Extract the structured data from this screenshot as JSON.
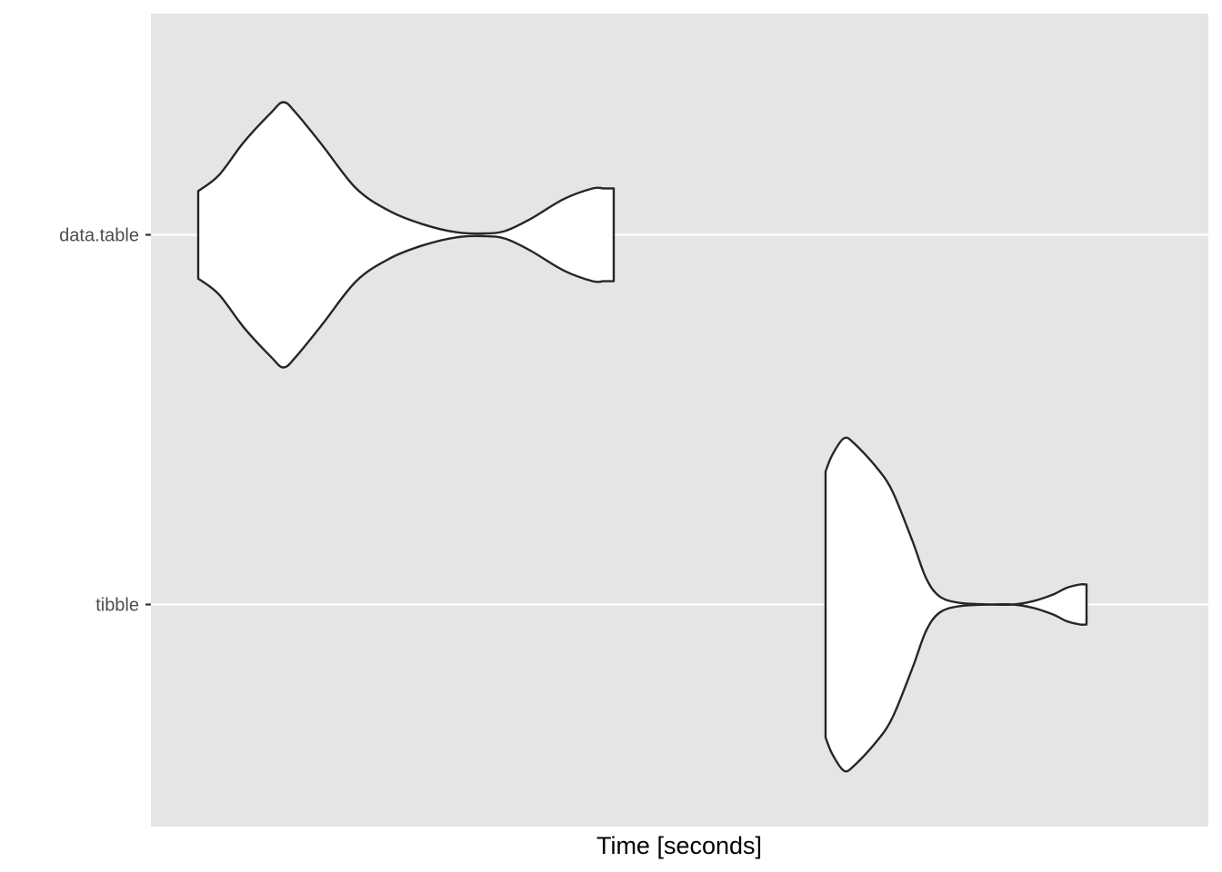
{
  "chart_data": {
    "type": "violin",
    "orientation": "horizontal",
    "title": "",
    "xlabel": "Time [seconds]",
    "ylabel": "",
    "x_tick_labels": [],
    "grid": true,
    "legend": "none",
    "categories": [
      "data.table",
      "tibble"
    ],
    "colors": {
      "panel_background": "#e5e5e5",
      "grid_line": "#ffffff",
      "violin_fill": "#ffffff",
      "violin_stroke": "#262626",
      "tick_text": "#4d4d4d"
    },
    "series": [
      {
        "category": "data.table",
        "profile": [
          [
            0.0,
            0.33
          ],
          [
            0.05,
            0.45
          ],
          [
            0.11,
            0.7
          ],
          [
            0.175,
            0.92
          ],
          [
            0.205,
            1.0
          ],
          [
            0.235,
            0.92
          ],
          [
            0.3,
            0.67
          ],
          [
            0.38,
            0.35
          ],
          [
            0.46,
            0.18
          ],
          [
            0.54,
            0.08
          ],
          [
            0.62,
            0.02
          ],
          [
            0.69,
            0.01
          ],
          [
            0.74,
            0.03
          ],
          [
            0.8,
            0.12
          ],
          [
            0.88,
            0.27
          ],
          [
            0.95,
            0.35
          ],
          [
            0.975,
            0.35
          ],
          [
            1.0,
            0.35
          ]
        ]
      },
      {
        "category": "tibble",
        "profile": [
          [
            0.0,
            0.8
          ],
          [
            0.02,
            0.9
          ],
          [
            0.055,
            1.0
          ],
          [
            0.085,
            0.97
          ],
          [
            0.15,
            0.83
          ],
          [
            0.2,
            0.68
          ],
          [
            0.26,
            0.38
          ],
          [
            0.3,
            0.16
          ],
          [
            0.34,
            0.05
          ],
          [
            0.4,
            0.01
          ],
          [
            0.5,
            0.0
          ],
          [
            0.56,
            0.0
          ],
          [
            0.62,
            0.02
          ],
          [
            0.68,
            0.06
          ],
          [
            0.72,
            0.1
          ],
          [
            0.76,
            0.12
          ],
          [
            0.78,
            0.12
          ]
        ]
      }
    ]
  }
}
